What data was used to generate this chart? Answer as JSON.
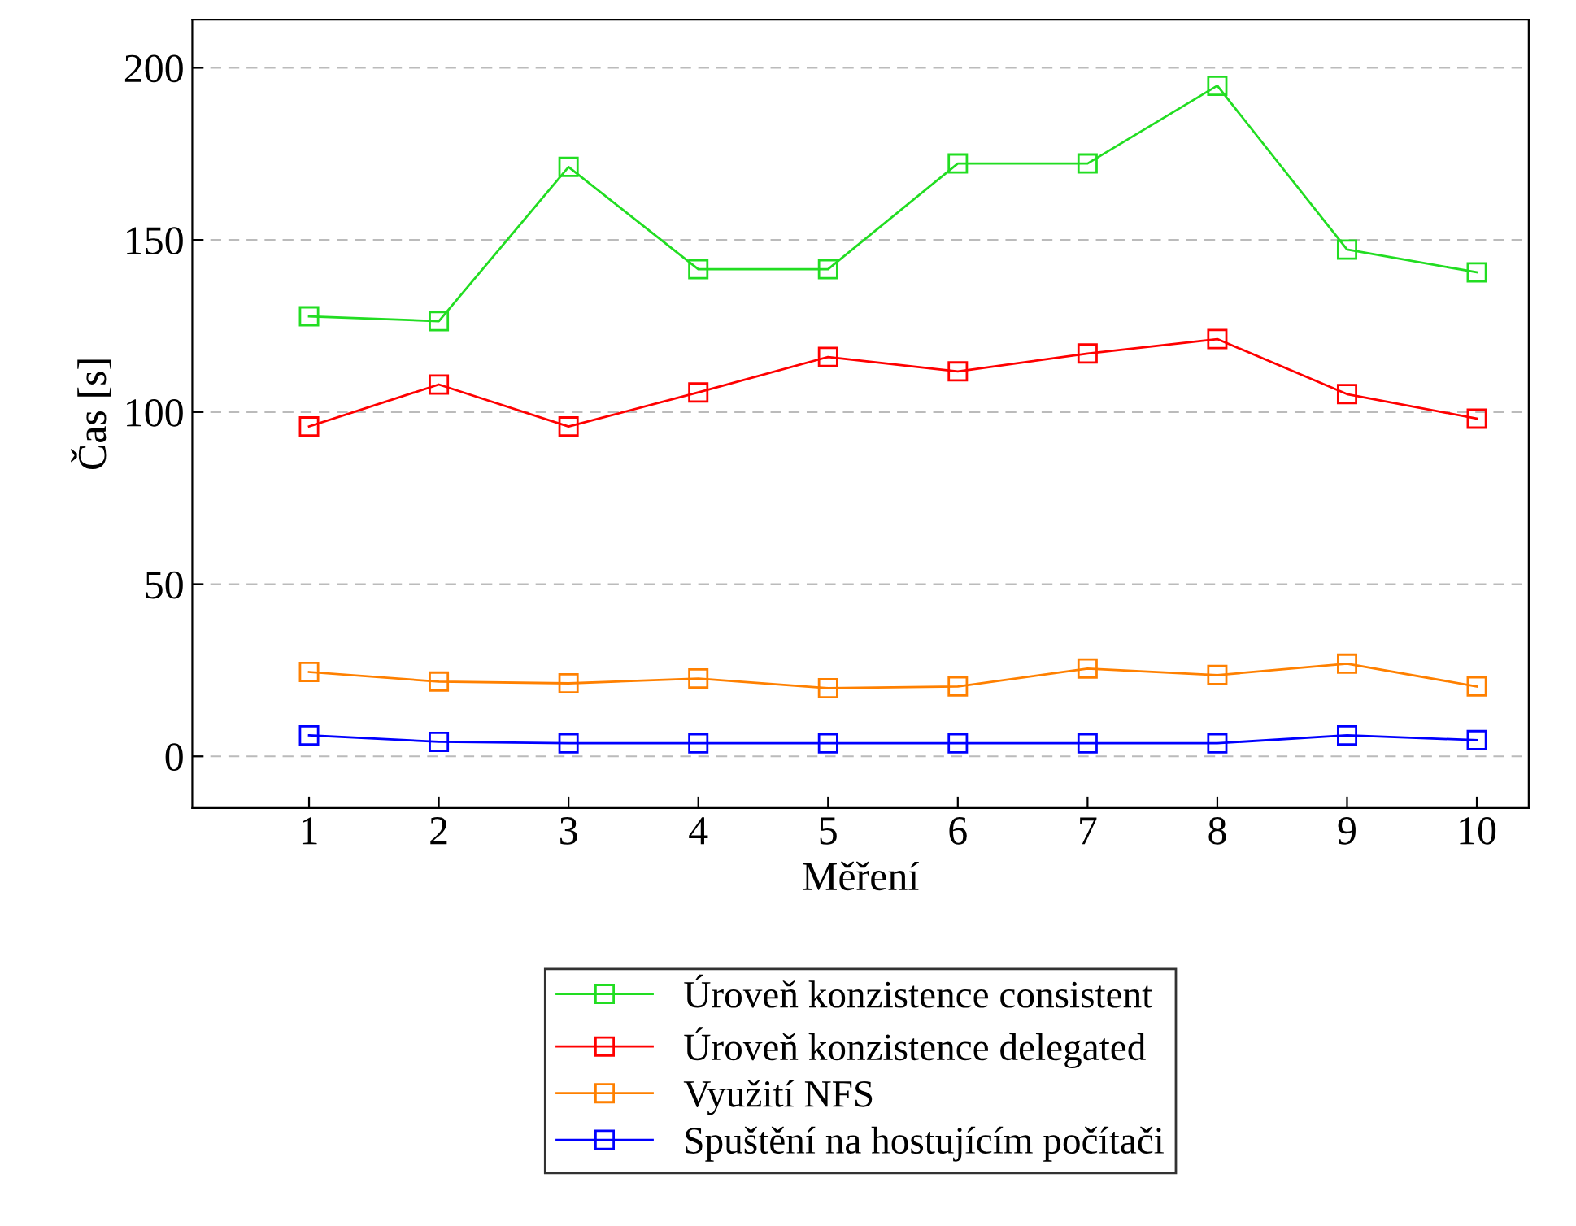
{
  "chart_data": {
    "type": "line",
    "xlabel": "Měření",
    "ylabel": "Čas [s]",
    "x": [
      1,
      2,
      3,
      4,
      5,
      6,
      7,
      8,
      9,
      10
    ],
    "series": [
      {
        "name": "Úroveň konzistence consistent",
        "color": "#22dd22",
        "values": [
          127.8,
          126.4,
          171.2,
          141.5,
          141.5,
          172.2,
          172.2,
          194.8,
          147.2,
          140.6
        ]
      },
      {
        "name": "Úroveň konzistence delegated",
        "color": "#ff0000",
        "values": [
          95.8,
          108,
          95.8,
          105.7,
          116,
          111.8,
          117,
          121.2,
          105.2,
          98.1
        ]
      },
      {
        "name": "Využití NFS",
        "color": "#ff8000",
        "values": [
          24.5,
          21.7,
          21.2,
          22.6,
          19.8,
          20.3,
          25.5,
          23.6,
          26.9,
          20.3
        ]
      },
      {
        "name": "Spuštění na hostujícím počítači",
        "color": "#0000ff",
        "values": [
          6.1,
          4.2,
          3.8,
          3.8,
          3.8,
          3.8,
          3.8,
          3.8,
          6.1,
          4.7
        ]
      }
    ],
    "xlim": [
      0.1,
      10.4
    ],
    "ylim": [
      -15,
      214
    ],
    "xticks": [
      1,
      2,
      3,
      4,
      5,
      6,
      7,
      8,
      9,
      10
    ],
    "yticks": [
      0,
      50,
      100,
      150,
      200
    ],
    "grid": "y",
    "legend": "bottom",
    "marker": "square",
    "line_style": "solid"
  }
}
